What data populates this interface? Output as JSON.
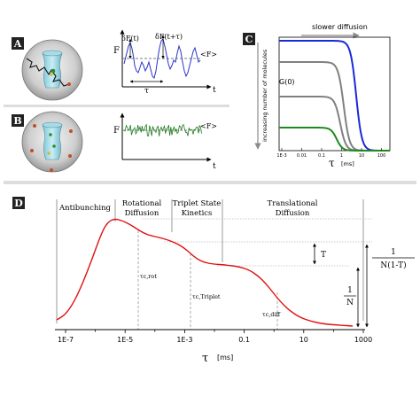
{
  "panel_a": {
    "label": "A",
    "ylabel": "F",
    "xlabel": "t",
    "delta_f_t": "δF(t)",
    "delta_f_t_tau": "δF(t+τ)",
    "mean_f": "<F>",
    "tau": "τ"
  },
  "panel_b": {
    "label": "B",
    "ylabel": "F",
    "xlabel": "t",
    "mean_f": "<F>"
  },
  "panel_c": {
    "label": "C",
    "title": "slower diffusion",
    "ylabel_rotated": "increasing number of molecules",
    "g0_label": "G(0)",
    "xlabel_symbol": "τ",
    "xlabel_unit": "[ms]",
    "x_ticks": [
      "1E-3",
      "0.01",
      "0.1",
      "1",
      "10",
      "100"
    ],
    "colors": {
      "blue": "#1a2ad8",
      "gray": "#808080",
      "green": "#1e8a1e"
    }
  },
  "panel_d": {
    "label": "D",
    "regions": [
      {
        "line1": "Antibunching",
        "line2": ""
      },
      {
        "line1": "Rotational",
        "line2": "Diffusion"
      },
      {
        "line1": "Triplet State",
        "line2": "Kinetics"
      },
      {
        "line1": "Translational",
        "line2": "Diffusion"
      }
    ],
    "taus": [
      "τc,rot",
      "τc,Triplet",
      "τc,diff"
    ],
    "triplet_label": "T",
    "one_over_n": {
      "num": "1",
      "den": "N"
    },
    "one_over_n1t": {
      "num": "1",
      "den": "N(1-T)"
    },
    "xlabel_symbol": "τ",
    "xlabel_unit": "[ms]",
    "x_ticks": [
      "1E-7",
      "1E-5",
      "1E-3",
      "0.1",
      "10",
      "1000"
    ],
    "curve_color": "#e01010"
  }
}
